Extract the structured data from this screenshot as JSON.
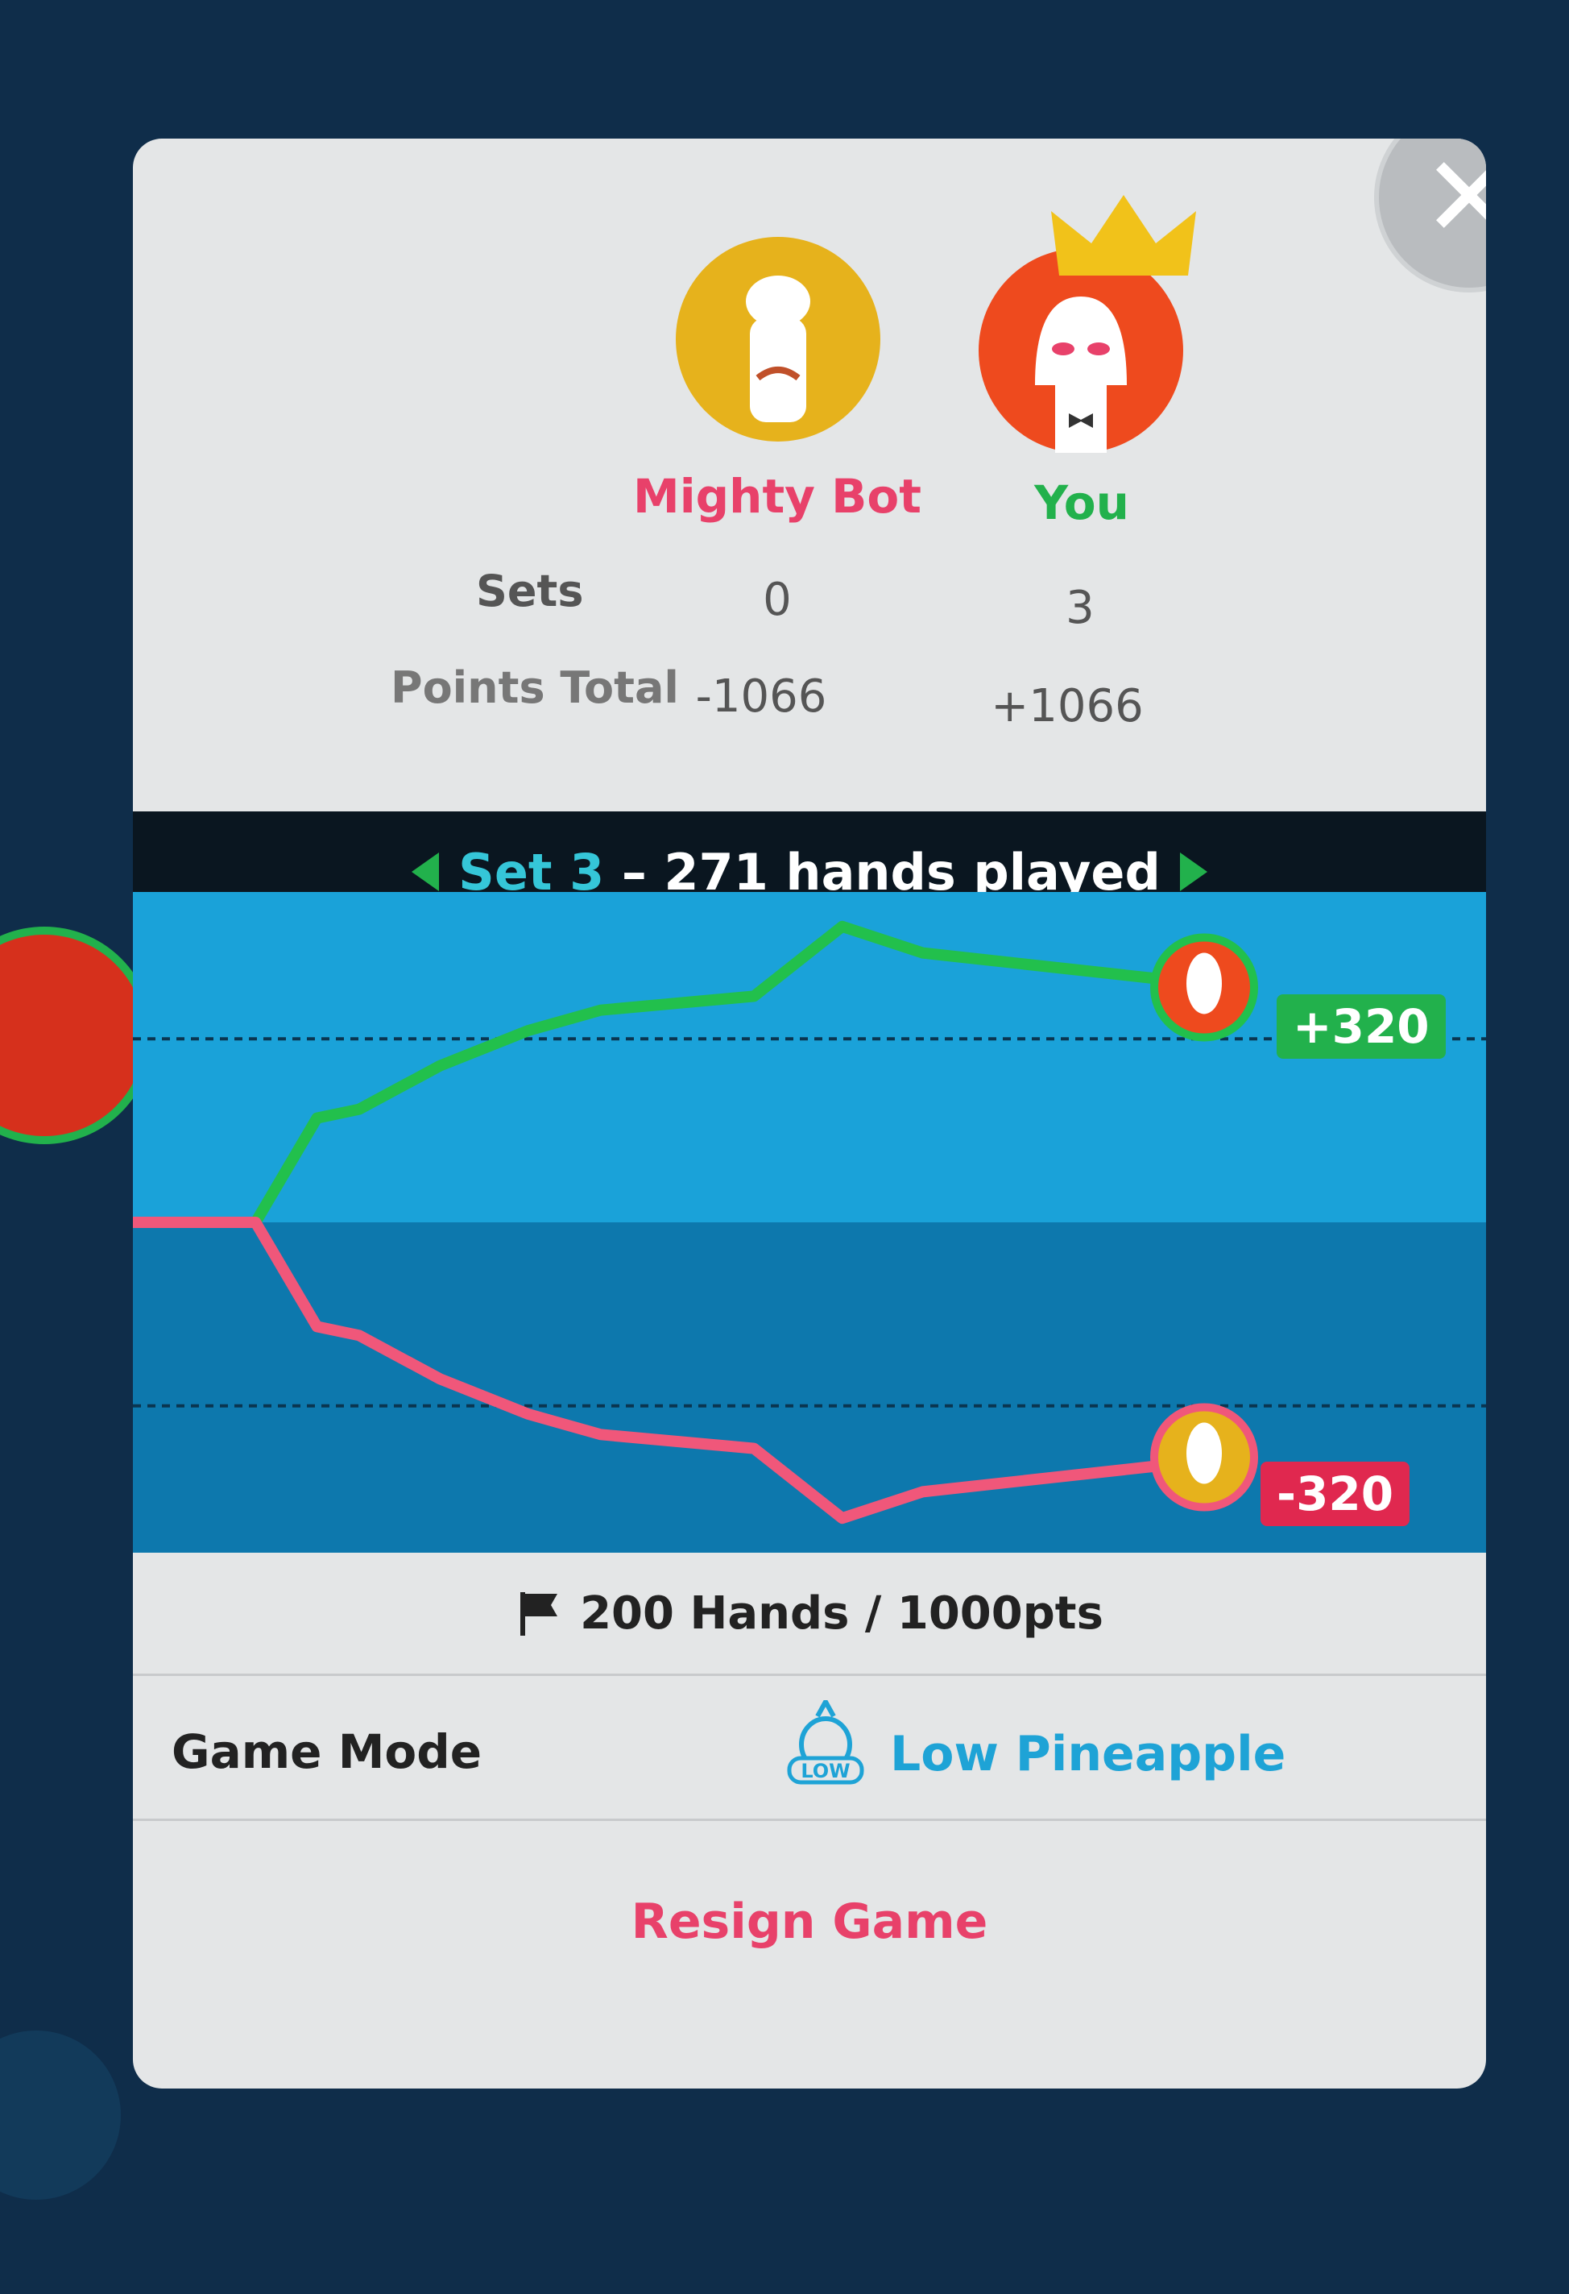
{
  "players": [
    {
      "name": "Mighty Bot",
      "sets": "0",
      "points": "-1066",
      "color": "#e8416a",
      "avatar_color": "#e6b21c",
      "icon": "chef-avatar-icon",
      "final": "-320"
    },
    {
      "name": "You",
      "sets": "3",
      "points": "+1066",
      "color": "#22b14c",
      "avatar_color": "#ee4a1e",
      "icon": "vader-avatar-icon",
      "crown": "crown-icon",
      "final": "+320"
    }
  ],
  "labels": {
    "sets": "Sets",
    "points_total": "Points Total"
  },
  "set_nav": {
    "set_label": "Set 3",
    "separator": " – ",
    "hands_played": "271 hands played",
    "prev_icon": "triangle-left-icon",
    "next_icon": "triangle-right-icon"
  },
  "target": {
    "icon": "flag-icon",
    "text": "200 Hands / 1000pts"
  },
  "game_mode": {
    "label": "Game Mode",
    "value": "Low Pineapple",
    "icon": "low-pineapple-icon",
    "icon_text": "LOW",
    "color": "#1ea3d6"
  },
  "resign": {
    "label": "Resign Game",
    "color": "#e8416a"
  },
  "close_icon": "close-icon",
  "chart_data": {
    "type": "line",
    "x_range": [
      0,
      271
    ],
    "ylim": [
      -450,
      450
    ],
    "grid": "dashed horizontal",
    "series": [
      {
        "name": "You",
        "color": "#22c04c",
        "x": [
          0,
          32,
          48,
          59,
          80,
          103,
          122,
          162,
          185,
          206,
          267,
          271
        ],
        "values": [
          0,
          0,
          142,
          154,
          213,
          261,
          289,
          308,
          403,
          367,
          332,
          320
        ]
      },
      {
        "name": "Mighty Bot",
        "color": "#f0577a",
        "x": [
          0,
          32,
          48,
          59,
          80,
          103,
          122,
          162,
          185,
          206,
          267,
          271
        ],
        "values": [
          0,
          0,
          -142,
          -154,
          -213,
          -261,
          -289,
          -308,
          -403,
          -367,
          -332,
          -320
        ]
      }
    ]
  }
}
